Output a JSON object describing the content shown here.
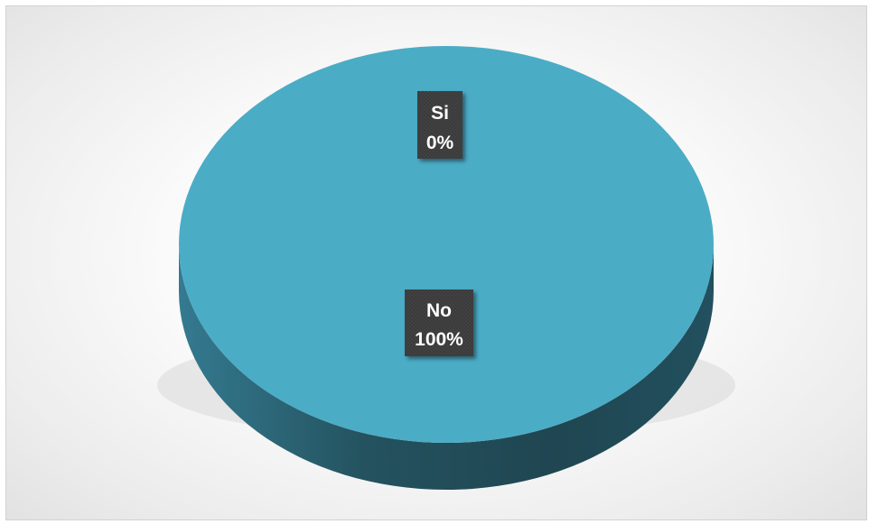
{
  "chart_data": {
    "type": "pie",
    "style": "3d",
    "categories": [
      "Si",
      "No"
    ],
    "values": [
      0,
      100
    ],
    "percent_labels": [
      "0%",
      "100%"
    ],
    "colors": {
      "top": "#4BACC6",
      "side": "#2B6377",
      "side_dark": "#1E4451",
      "label_box": "#3d3d3d"
    },
    "title": "",
    "legend": "none"
  }
}
